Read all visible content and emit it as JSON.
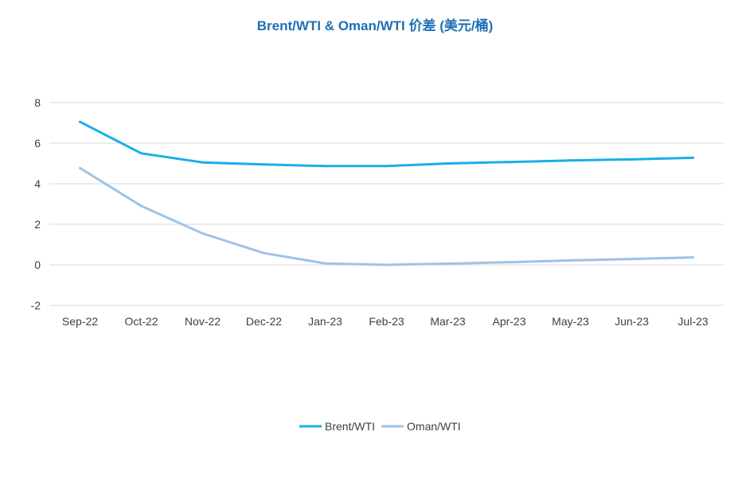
{
  "chart_data": {
    "type": "line",
    "title": "Brent/WTI & Oman/WTI 价差 (美元/桶)",
    "categories": [
      "Sep-22",
      "Oct-22",
      "Nov-22",
      "Dec-22",
      "Jan-23",
      "Feb-23",
      "Mar-23",
      "Apr-23",
      "May-23",
      "Jun-23",
      "Jul-23"
    ],
    "series": [
      {
        "name": "Brent/WTI",
        "color": "#1aaee9",
        "values": [
          7.05,
          5.5,
          5.05,
          4.95,
          4.87,
          4.87,
          5.0,
          5.07,
          5.15,
          5.2,
          5.28
        ]
      },
      {
        "name": "Oman/WTI",
        "color": "#9dc3e6",
        "values": [
          4.77,
          2.9,
          1.55,
          0.58,
          0.07,
          0.0,
          0.06,
          0.13,
          0.22,
          0.29,
          0.37
        ]
      }
    ],
    "yticks": [
      "8",
      "6",
      "4",
      "2",
      "0",
      "-2"
    ],
    "ylim": [
      -2,
      8
    ],
    "grid": true,
    "legend": "bottom",
    "title_color": "#1f6fb4"
  }
}
